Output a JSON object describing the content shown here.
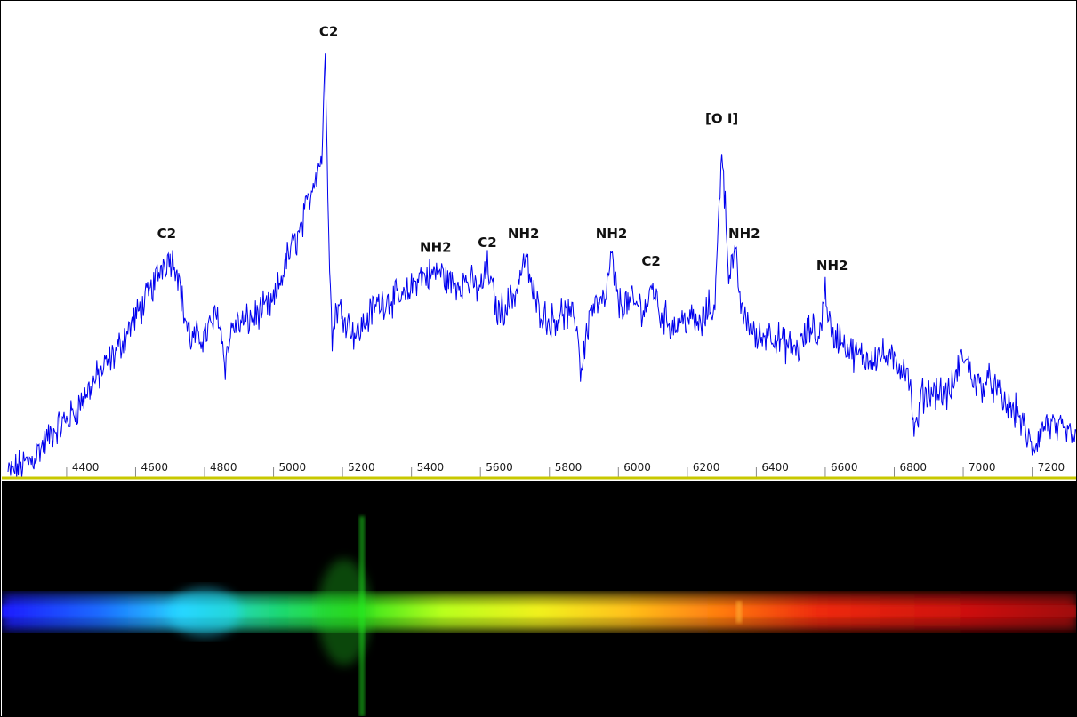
{
  "chart_data": {
    "type": "line",
    "title": "",
    "xlabel": "",
    "ylabel": "",
    "xlim": [
      4230,
      7330
    ],
    "ylim": [
      0,
      1
    ],
    "grid": false,
    "line_color": "#0000ee",
    "axis_color": "#c8c800",
    "tick_labels": [
      "4400",
      "4600",
      "4800",
      "5000",
      "5200",
      "5400",
      "5600",
      "5800",
      "6000",
      "6200",
      "6400",
      "6600",
      "6800",
      "7000",
      "7200"
    ],
    "tick_values": [
      4400,
      4600,
      4800,
      5000,
      5200,
      5400,
      5600,
      5800,
      6000,
      6200,
      6400,
      6600,
      6800,
      7000,
      7200
    ],
    "series": [
      {
        "x": [
          4230,
          4300,
          4360,
          4420,
          4480,
          4540,
          4600,
          4640,
          4680,
          4700,
          4720,
          4740,
          4760,
          4800,
          4840,
          4860,
          4880,
          4920,
          4960,
          5000,
          5040,
          5080,
          5100,
          5120,
          5140,
          5150,
          5160,
          5170,
          5180,
          5200,
          5240,
          5300,
          5340,
          5380,
          5420,
          5450,
          5480,
          5520,
          5560,
          5600,
          5620,
          5650,
          5680,
          5700,
          5730,
          5760,
          5800,
          5840,
          5880,
          5890,
          5920,
          5960,
          5980,
          6000,
          6040,
          6080,
          6100,
          6120,
          6160,
          6200,
          6240,
          6260,
          6280,
          6300,
          6320,
          6340,
          6360,
          6380,
          6400,
          6440,
          6480,
          6520,
          6560,
          6580,
          6600,
          6620,
          6640,
          6680,
          6720,
          6760,
          6800,
          6840,
          6860,
          6880,
          6920,
          6960,
          7000,
          7040,
          7080,
          7120,
          7160,
          7200,
          7240,
          7280,
          7330
        ],
        "y": [
          0.01,
          0.04,
          0.1,
          0.14,
          0.21,
          0.27,
          0.35,
          0.4,
          0.47,
          0.48,
          0.46,
          0.36,
          0.3,
          0.31,
          0.36,
          0.25,
          0.33,
          0.34,
          0.36,
          0.38,
          0.48,
          0.54,
          0.6,
          0.66,
          0.7,
          0.92,
          0.55,
          0.29,
          0.37,
          0.36,
          0.31,
          0.38,
          0.39,
          0.39,
          0.44,
          0.44,
          0.45,
          0.42,
          0.43,
          0.41,
          0.46,
          0.36,
          0.38,
          0.4,
          0.48,
          0.38,
          0.34,
          0.36,
          0.34,
          0.23,
          0.37,
          0.38,
          0.48,
          0.38,
          0.38,
          0.37,
          0.42,
          0.36,
          0.33,
          0.35,
          0.33,
          0.37,
          0.37,
          0.73,
          0.45,
          0.48,
          0.35,
          0.34,
          0.3,
          0.32,
          0.29,
          0.28,
          0.33,
          0.3,
          0.41,
          0.3,
          0.31,
          0.27,
          0.26,
          0.27,
          0.25,
          0.24,
          0.09,
          0.18,
          0.19,
          0.18,
          0.27,
          0.2,
          0.21,
          0.16,
          0.14,
          0.06,
          0.12,
          0.1,
          0.09
        ]
      }
    ],
    "annotations": [
      {
        "label": "C2",
        "x": 4690,
        "y": 0.48
      },
      {
        "label": "C2",
        "x": 5160,
        "y": 0.92
      },
      {
        "label": "NH2",
        "x": 5470,
        "y": 0.45
      },
      {
        "label": "C2",
        "x": 5620,
        "y": 0.46
      },
      {
        "label": "NH2",
        "x": 5725,
        "y": 0.48
      },
      {
        "label": "NH2",
        "x": 5980,
        "y": 0.48
      },
      {
        "label": "C2",
        "x": 6095,
        "y": 0.42
      },
      {
        "label": "[O I]",
        "x": 6300,
        "y": 0.73
      },
      {
        "label": "NH2",
        "x": 6365,
        "y": 0.48
      },
      {
        "label": "NH2",
        "x": 6620,
        "y": 0.41
      }
    ]
  }
}
